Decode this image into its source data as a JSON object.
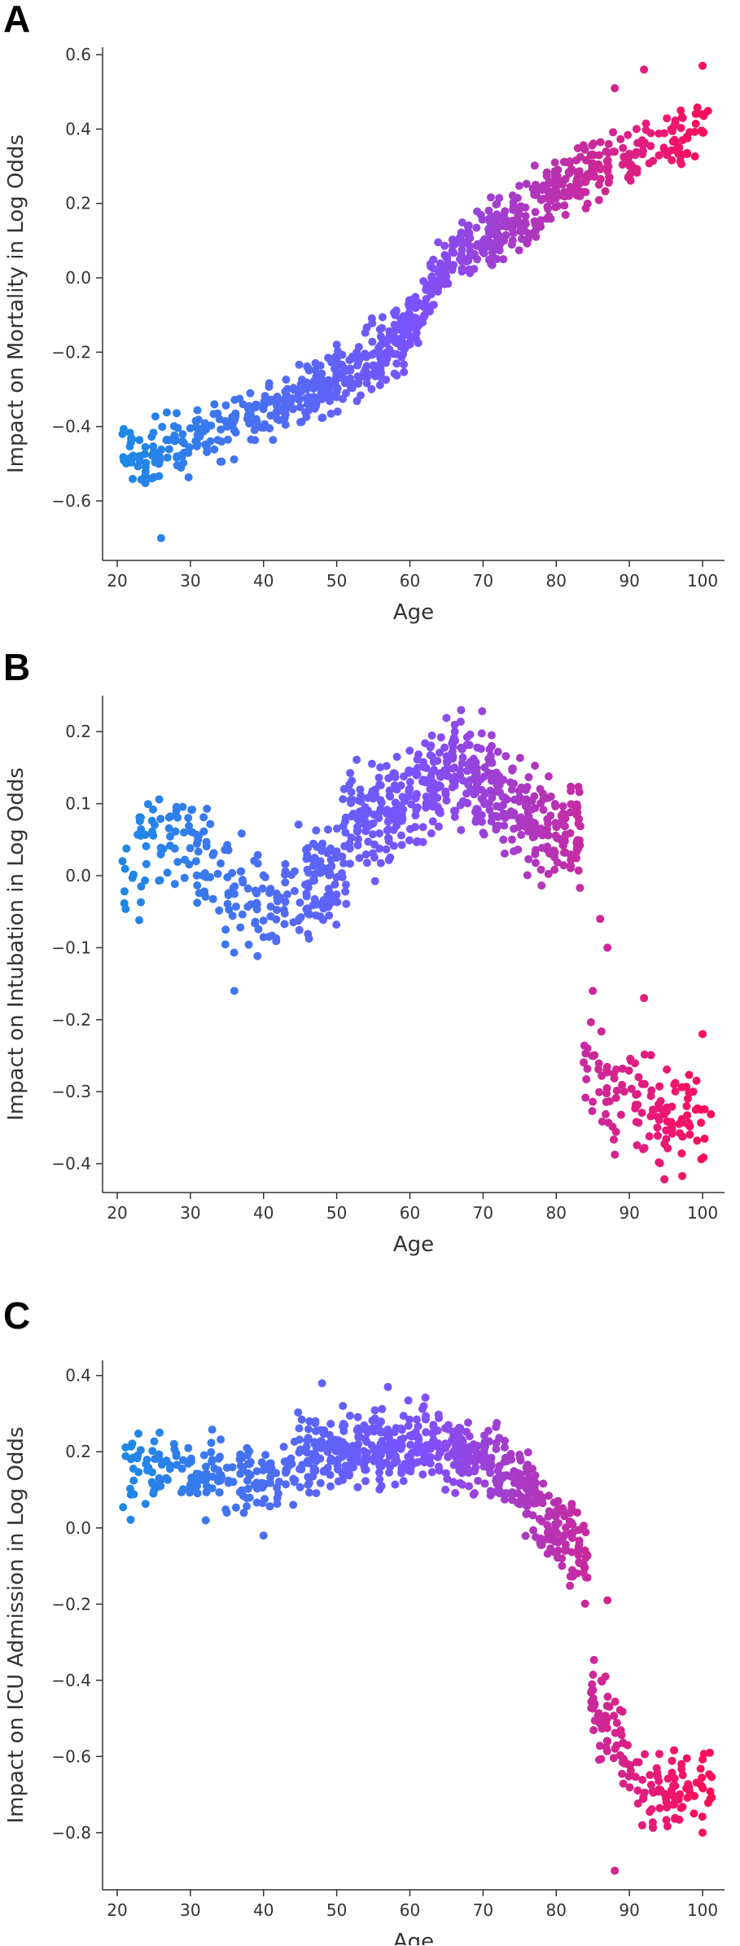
{
  "panels": [
    {
      "letter": "A",
      "chart_data": {
        "type": "scatter",
        "xlabel": "Age",
        "ylabel": "Impact on Mortality in Log Odds",
        "xlim": [
          18,
          103
        ],
        "ylim": [
          -0.76,
          0.62
        ],
        "xticks": [
          20,
          30,
          40,
          50,
          60,
          70,
          80,
          90,
          100
        ],
        "yticks": [
          -0.6,
          -0.4,
          -0.2,
          0.0,
          0.2,
          0.4,
          0.6
        ],
        "ytick_labels": [
          "−0.6",
          "−0.4",
          "−0.2",
          "0.0",
          "0.2",
          "0.4",
          "0.6"
        ],
        "trend": [
          [
            21,
            -0.5
          ],
          [
            30,
            -0.44
          ],
          [
            40,
            -0.36
          ],
          [
            50,
            -0.28
          ],
          [
            55,
            -0.22
          ],
          [
            60,
            -0.12
          ],
          [
            65,
            0.04
          ],
          [
            70,
            0.1
          ],
          [
            75,
            0.16
          ],
          [
            80,
            0.24
          ],
          [
            90,
            0.33
          ],
          [
            101,
            0.4
          ]
        ],
        "spread": 0.05,
        "extra_points": [
          [
            26,
            -0.7
          ],
          [
            92,
            0.56
          ],
          [
            100,
            0.57
          ],
          [
            88,
            0.51
          ]
        ],
        "color_low": "#1e88e5",
        "color_high": "#ff0d57"
      }
    },
    {
      "letter": "B",
      "chart_data": {
        "type": "scatter",
        "xlabel": "Age",
        "ylabel": "Impact on Intubation in Log Odds",
        "xlim": [
          18,
          103
        ],
        "ylim": [
          -0.44,
          0.25
        ],
        "xticks": [
          20,
          30,
          40,
          50,
          60,
          70,
          80,
          90,
          100
        ],
        "yticks": [
          -0.4,
          -0.3,
          -0.2,
          -0.1,
          0.0,
          0.1,
          0.2
        ],
        "ytick_labels": [
          "−0.4",
          "−0.3",
          "−0.2",
          "−0.1",
          "0.0",
          "0.1",
          "0.2"
        ],
        "trend": [
          [
            21,
            0.0
          ],
          [
            25,
            0.04
          ],
          [
            30,
            0.05
          ],
          [
            35,
            -0.03
          ],
          [
            40,
            -0.04
          ],
          [
            45,
            -0.02
          ],
          [
            50,
            0.0
          ],
          [
            52,
            0.07
          ],
          [
            60,
            0.11
          ],
          [
            65,
            0.14
          ],
          [
            70,
            0.13
          ],
          [
            75,
            0.09
          ],
          [
            80,
            0.06
          ],
          [
            83,
            0.06
          ],
          [
            84,
            -0.24
          ],
          [
            88,
            -0.3
          ],
          [
            95,
            -0.34
          ],
          [
            101,
            -0.33
          ]
        ],
        "spread": 0.045,
        "extra_points": [
          [
            36,
            -0.16
          ],
          [
            67,
            0.23
          ],
          [
            86,
            -0.06
          ],
          [
            87,
            -0.1
          ],
          [
            85,
            -0.16
          ],
          [
            92,
            -0.17
          ],
          [
            100,
            -0.22
          ]
        ],
        "color_low": "#1e88e5",
        "color_high": "#ff0d57"
      }
    },
    {
      "letter": "C",
      "chart_data": {
        "type": "scatter",
        "xlabel": "Age",
        "ylabel": "Impact on ICU Admission in Log Odds",
        "xlim": [
          18,
          103
        ],
        "ylim": [
          -0.95,
          0.44
        ],
        "xticks": [
          20,
          30,
          40,
          50,
          60,
          70,
          80,
          90,
          100
        ],
        "yticks": [
          -0.8,
          -0.6,
          -0.4,
          -0.2,
          0.0,
          0.2,
          0.4
        ],
        "ytick_labels": [
          "−0.8",
          "−0.6",
          "−0.4",
          "−0.2",
          "0.0",
          "0.2",
          "0.4"
        ],
        "trend": [
          [
            21,
            0.14
          ],
          [
            30,
            0.15
          ],
          [
            40,
            0.12
          ],
          [
            45,
            0.18
          ],
          [
            50,
            0.2
          ],
          [
            60,
            0.2
          ],
          [
            65,
            0.22
          ],
          [
            70,
            0.18
          ],
          [
            75,
            0.12
          ],
          [
            80,
            0.0
          ],
          [
            84,
            -0.08
          ],
          [
            85,
            -0.45
          ],
          [
            88,
            -0.55
          ],
          [
            92,
            -0.7
          ],
          [
            101,
            -0.68
          ]
        ],
        "spread": 0.06,
        "extra_points": [
          [
            40,
            -0.02
          ],
          [
            48,
            0.38
          ],
          [
            57,
            0.37
          ],
          [
            87,
            -0.19
          ],
          [
            88,
            -0.9
          ],
          [
            101,
            -0.59
          ],
          [
            100,
            -0.8
          ]
        ],
        "color_low": "#1e88e5",
        "color_high": "#ff0d57"
      }
    }
  ]
}
